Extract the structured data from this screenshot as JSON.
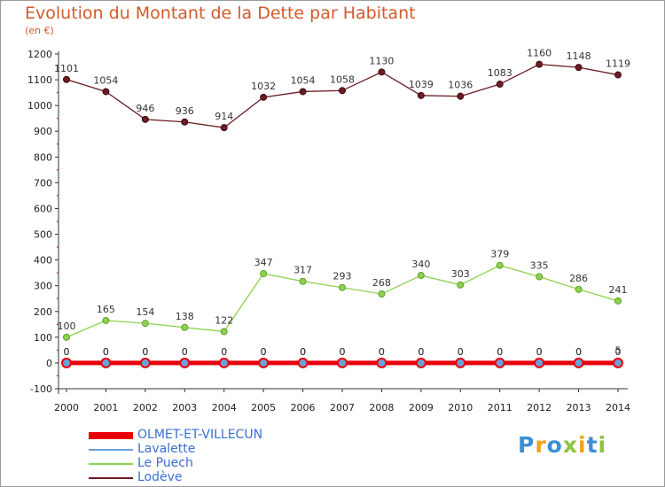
{
  "chart_data": {
    "type": "line",
    "title": "Evolution du Montant de la Dette par Habitant",
    "unit_label": "(en €)",
    "x": [
      "2000",
      "2001",
      "2002",
      "2003",
      "2004",
      "2005",
      "2006",
      "2007",
      "2008",
      "2009",
      "2010",
      "2011",
      "2012",
      "2013",
      "2014"
    ],
    "ylim": [
      -100,
      1200
    ],
    "yticks": [
      -100,
      0,
      100,
      200,
      300,
      400,
      500,
      600,
      700,
      800,
      900,
      1000,
      1100,
      1200
    ],
    "grid": false,
    "legend_position": "bottom-left",
    "series": [
      {
        "name": "OLMET-ET-VILLECUN",
        "color": "#e8000b",
        "values": [
          0,
          0,
          0,
          0,
          0,
          0,
          0,
          0,
          0,
          0,
          0,
          0,
          0,
          0,
          0
        ]
      },
      {
        "name": "Lavalette",
        "color": "#6aa2d8",
        "values": [
          0,
          0,
          0,
          0,
          0,
          0,
          0,
          0,
          0,
          0,
          0,
          0,
          0,
          0,
          5
        ]
      },
      {
        "name": "Le Puech",
        "color": "#8fd14f",
        "values": [
          100,
          165,
          154,
          138,
          122,
          347,
          317,
          293,
          268,
          340,
          303,
          379,
          335,
          286,
          241
        ]
      },
      {
        "name": "Lodève",
        "color": "#6b1c24",
        "values": [
          1101,
          1054,
          946,
          936,
          914,
          1032,
          1054,
          1058,
          1130,
          1039,
          1036,
          1083,
          1160,
          1148,
          1119
        ]
      }
    ]
  },
  "logo": {
    "letters": [
      "P",
      "r",
      "o",
      "x",
      "i",
      "t",
      "i"
    ],
    "colors": [
      "#3b8fd4",
      "#f2a31b",
      "#3b8fd4",
      "#8fc33f",
      "#f2a31b",
      "#3b8fd4",
      "#8fc33f"
    ]
  }
}
